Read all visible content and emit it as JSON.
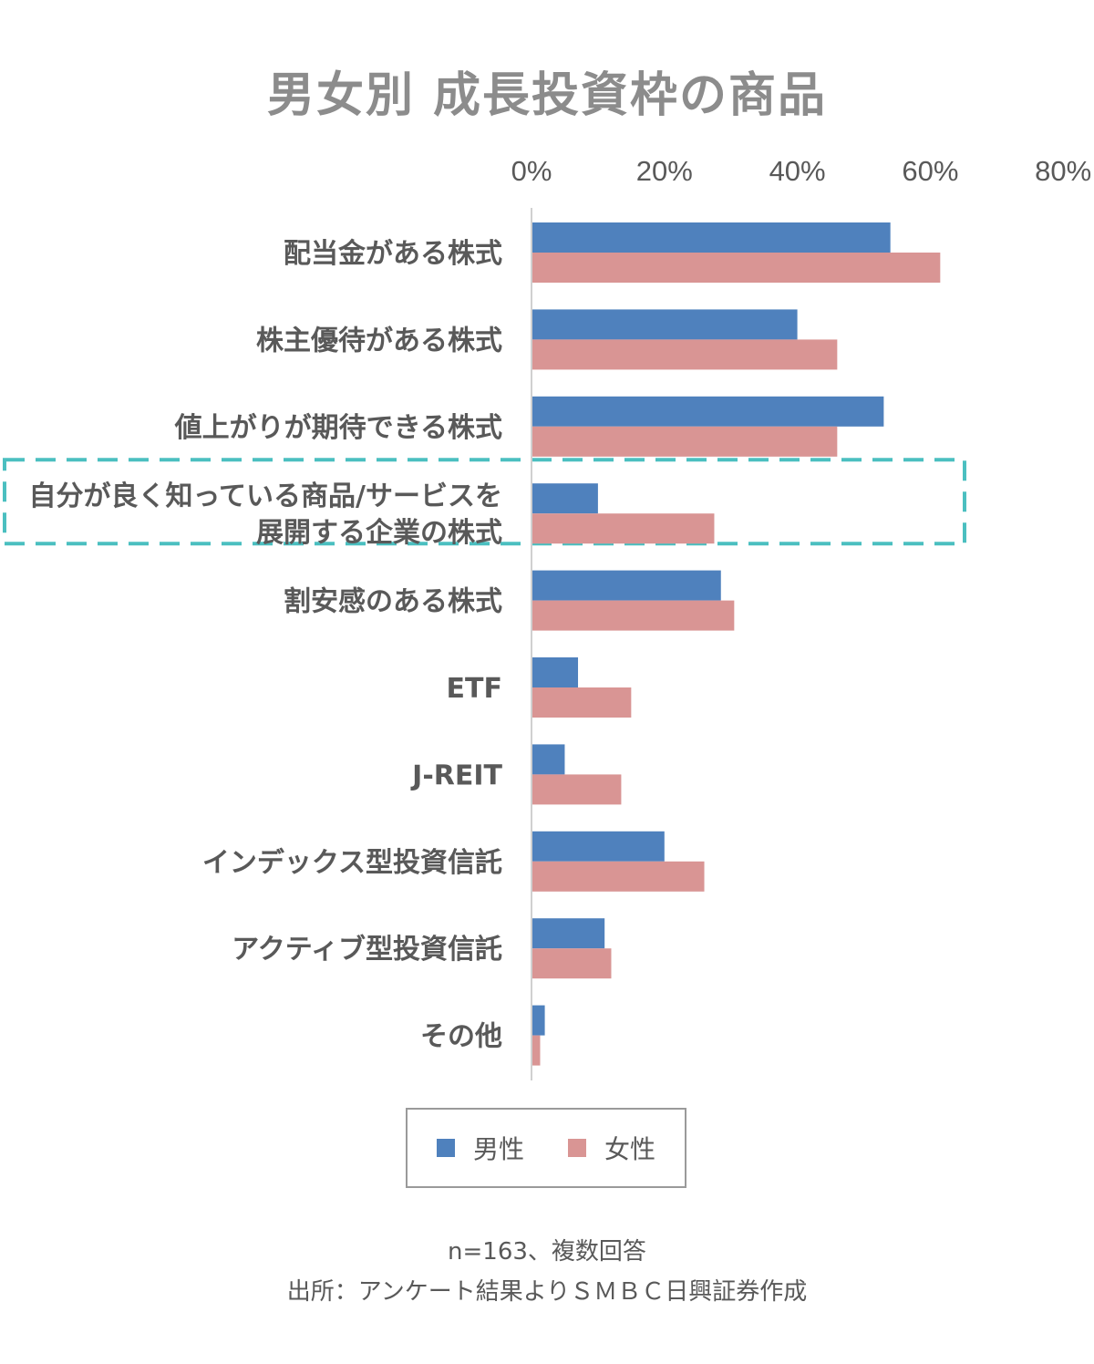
{
  "chart_data": {
    "type": "bar",
    "orientation": "horizontal",
    "title": "男女別 成長投資枠の商品",
    "categories": [
      "配当金がある株式",
      "株主優待がある株式",
      "値上がりが期待できる株式",
      "自分が良く知っている商品/サービスを展開する企業の株式",
      "割安感のある株式",
      "ETF",
      "J-REIT",
      "インデックス型投資信託",
      "アクティブ型投資信託",
      "その他"
    ],
    "category_lines": [
      [
        "配当金がある株式"
      ],
      [
        "株主優待がある株式"
      ],
      [
        "値上がりが期待できる株式"
      ],
      [
        "自分が良く知っている商品/サービスを",
        "展開する企業の株式"
      ],
      [
        "割安感のある株式"
      ],
      [
        "ETF"
      ],
      [
        "J-REIT"
      ],
      [
        "インデックス型投資信託"
      ],
      [
        "アクティブ型投資信託"
      ],
      [
        "その他"
      ]
    ],
    "series": [
      {
        "name": "男性",
        "color": "#4f81bd",
        "values": [
          54,
          40,
          53,
          10,
          28.5,
          7,
          5,
          20,
          11,
          2
        ]
      },
      {
        "name": "女性",
        "color": "#d99594",
        "values": [
          61.5,
          46,
          46,
          27.5,
          30.5,
          15,
          13.5,
          26,
          12,
          1.3
        ]
      }
    ],
    "xlim": [
      0,
      80
    ],
    "x_ticks": [
      "0%",
      "20%",
      "40%",
      "60%",
      "80%"
    ],
    "x_axis_position": "top",
    "grid": false,
    "legend_position": "bottom",
    "highlight_category_index": 3,
    "highlight_color": "#4bbfc0"
  },
  "notes": {
    "sample": "n=163、複数回答",
    "source": "出所：アンケート結果よりＳＭＢＣ日興証券作成"
  }
}
